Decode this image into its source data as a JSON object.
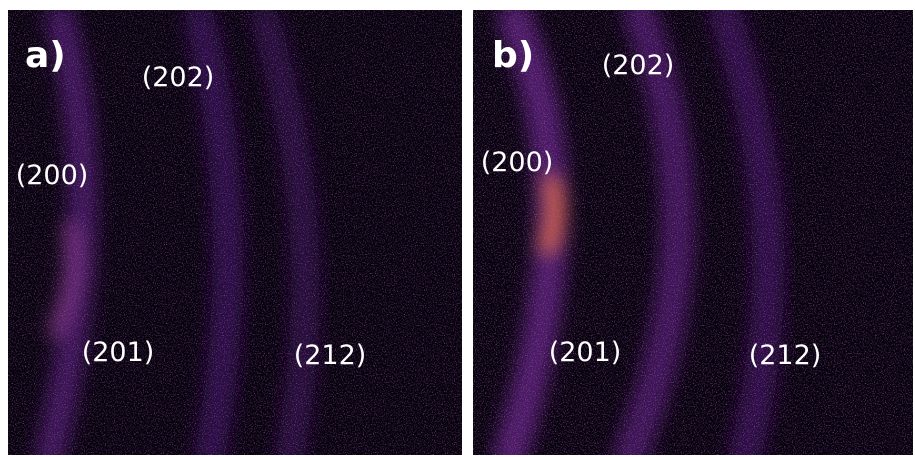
{
  "panels": [
    {
      "label": "a)",
      "peaks": [
        "(202)",
        "(200)",
        "(201)",
        "(212)"
      ]
    },
    {
      "label": "b)",
      "peaks": [
        "(202)",
        "(200)",
        "(201)",
        "(212)"
      ]
    }
  ]
}
